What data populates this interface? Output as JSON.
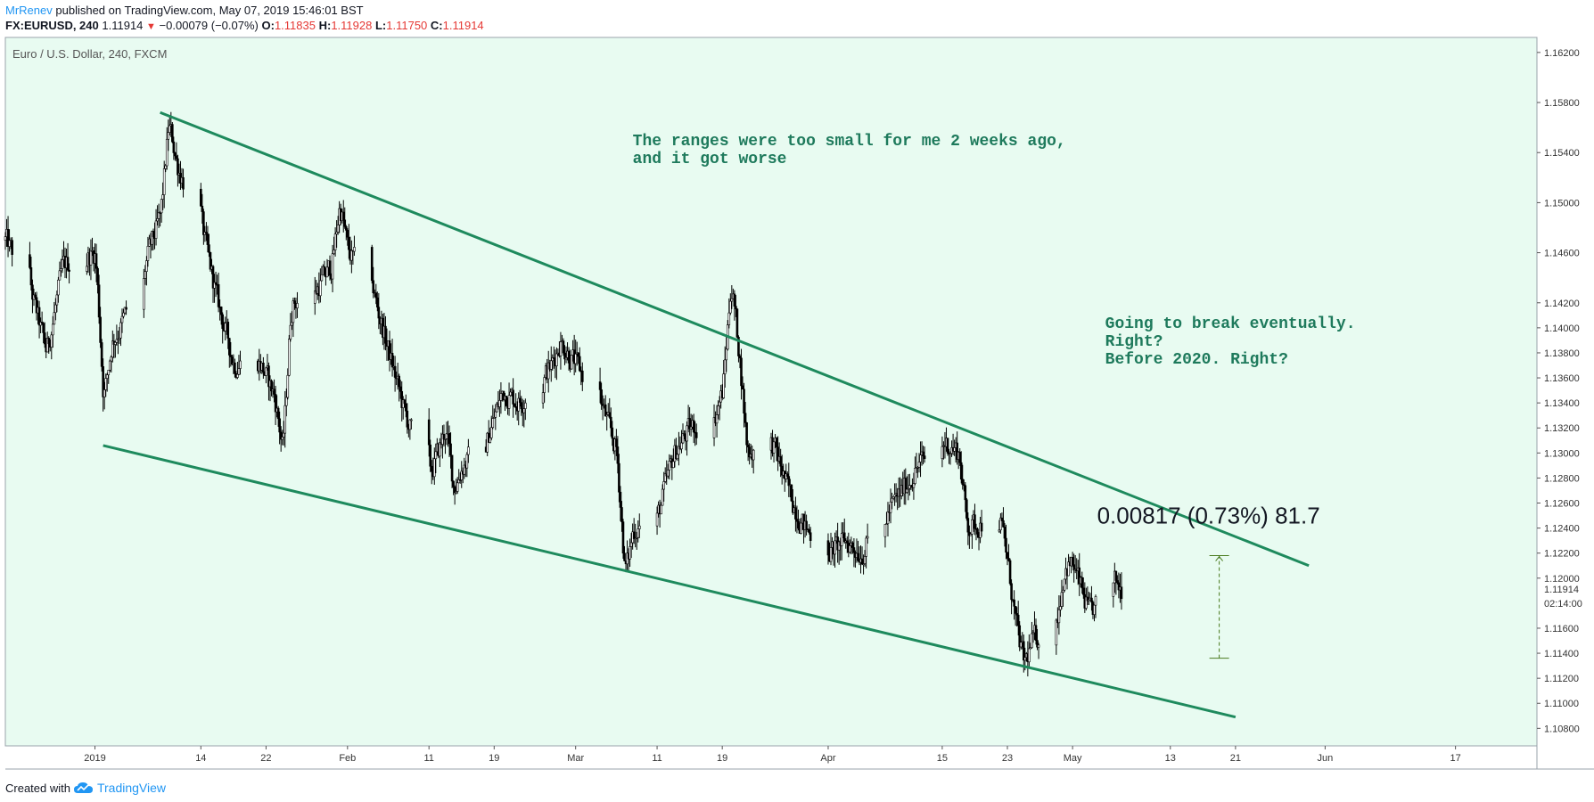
{
  "header": {
    "author": "MrRenev",
    "published_text": "published on TradingView.com, May 07, 2019 15:46:01 BST",
    "symbol": "FX:EURUSD, 240",
    "last": "1.11914",
    "change": "−0.00079 (−0.07%)",
    "open_label": "O:",
    "open": "1.11835",
    "high_label": "H:",
    "high": "1.11928",
    "low_label": "L:",
    "low": "1.11750",
    "close_label": "C:",
    "close": "1.11914",
    "down_arrow_icon": "triangle-down-icon"
  },
  "footer": {
    "created_with": "Created with",
    "brand": "TradingView",
    "logo_icon": "tradingview-cloud-icon"
  },
  "colors": {
    "background": "#e8fbf1",
    "trendline": "#1e8a5d",
    "annotation": "#1e7a5c",
    "candle": "#000000",
    "measure": "#4a7a1f",
    "down": "#e53935",
    "brand": "#2196f3"
  },
  "chart_data": {
    "type": "candlestick",
    "title": "Euro / U.S. Dollar, 240, FXCM",
    "ylim": [
      1.1066,
      1.1632
    ],
    "y_ticks": [
      "1.16200",
      "1.15800",
      "1.15400",
      "1.15000",
      "1.14600",
      "1.14200",
      "1.14000",
      "1.13800",
      "1.13600",
      "1.13400",
      "1.13200",
      "1.13000",
      "1.12800",
      "1.12600",
      "1.12400",
      "1.12200",
      "1.12000",
      "1.11600",
      "1.11400",
      "1.11200",
      "1.11000",
      "1.10800"
    ],
    "x_ticks": [
      {
        "label": "2019",
        "date": "2019-01-01"
      },
      {
        "label": "14",
        "date": "2019-01-14"
      },
      {
        "label": "22",
        "date": "2019-01-22"
      },
      {
        "label": "Feb",
        "date": "2019-02-01"
      },
      {
        "label": "11",
        "date": "2019-02-11"
      },
      {
        "label": "19",
        "date": "2019-02-19"
      },
      {
        "label": "Mar",
        "date": "2019-03-01"
      },
      {
        "label": "11",
        "date": "2019-03-11"
      },
      {
        "label": "19",
        "date": "2019-03-19"
      },
      {
        "label": "Apr",
        "date": "2019-04-01"
      },
      {
        "label": "15",
        "date": "2019-04-15"
      },
      {
        "label": "23",
        "date": "2019-04-23"
      },
      {
        "label": "May",
        "date": "2019-05-01"
      },
      {
        "label": "13",
        "date": "2019-05-13"
      },
      {
        "label": "21",
        "date": "2019-05-21"
      },
      {
        "label": "Jun",
        "date": "2019-06-01"
      },
      {
        "label": "17",
        "date": "2019-06-17"
      }
    ],
    "price_path": [
      [
        "2018-12-21",
        1.147
      ],
      [
        "2018-12-24",
        1.143
      ],
      [
        "2018-12-26",
        1.138
      ],
      [
        "2018-12-28",
        1.145
      ],
      [
        "2019-01-01",
        1.146
      ],
      [
        "2019-01-02",
        1.134
      ],
      [
        "2019-01-03",
        1.139
      ],
      [
        "2019-01-04",
        1.14
      ],
      [
        "2019-01-07",
        1.145
      ],
      [
        "2019-01-09",
        1.149
      ],
      [
        "2019-01-10",
        1.1565
      ],
      [
        "2019-01-11",
        1.153
      ],
      [
        "2019-01-14",
        1.148
      ],
      [
        "2019-01-16",
        1.142
      ],
      [
        "2019-01-18",
        1.137
      ],
      [
        "2019-01-21",
        1.1375
      ],
      [
        "2019-01-23",
        1.1345
      ],
      [
        "2019-01-24",
        1.13
      ],
      [
        "2019-01-25",
        1.142
      ],
      [
        "2019-01-28",
        1.143
      ],
      [
        "2019-01-30",
        1.145
      ],
      [
        "2019-01-31",
        1.15
      ],
      [
        "2019-02-01",
        1.146
      ],
      [
        "2019-02-04",
        1.143
      ],
      [
        "2019-02-06",
        1.138
      ],
      [
        "2019-02-08",
        1.133
      ],
      [
        "2019-02-11",
        1.128
      ],
      [
        "2019-02-13",
        1.132
      ],
      [
        "2019-02-14",
        1.127
      ],
      [
        "2019-02-15",
        1.129
      ],
      [
        "2019-02-18",
        1.131
      ],
      [
        "2019-02-20",
        1.135
      ],
      [
        "2019-02-22",
        1.134
      ],
      [
        "2019-02-26",
        1.137
      ],
      [
        "2019-02-27",
        1.139
      ],
      [
        "2019-03-01",
        1.137
      ],
      [
        "2019-03-04",
        1.134
      ],
      [
        "2019-03-06",
        1.13
      ],
      [
        "2019-03-07",
        1.12
      ],
      [
        "2019-03-08",
        1.124
      ],
      [
        "2019-03-11",
        1.125
      ],
      [
        "2019-03-13",
        1.13
      ],
      [
        "2019-03-15",
        1.132
      ],
      [
        "2019-03-18",
        1.133
      ],
      [
        "2019-03-19",
        1.135
      ],
      [
        "2019-03-20",
        1.144
      ],
      [
        "2019-03-21",
        1.138
      ],
      [
        "2019-03-22",
        1.13
      ],
      [
        "2019-03-25",
        1.131
      ],
      [
        "2019-03-27",
        1.127
      ],
      [
        "2019-03-29",
        1.124
      ],
      [
        "2019-04-01",
        1.122
      ],
      [
        "2019-04-03",
        1.123
      ],
      [
        "2019-04-05",
        1.122
      ],
      [
        "2019-04-08",
        1.125
      ],
      [
        "2019-04-10",
        1.127
      ],
      [
        "2019-04-12",
        1.129
      ],
      [
        "2019-04-15",
        1.131
      ],
      [
        "2019-04-17",
        1.13
      ],
      [
        "2019-04-18",
        1.124
      ],
      [
        "2019-04-22",
        1.125
      ],
      [
        "2019-04-23",
        1.121
      ],
      [
        "2019-04-24",
        1.116
      ],
      [
        "2019-04-25",
        1.113
      ],
      [
        "2019-04-26",
        1.115
      ],
      [
        "2019-04-29",
        1.117
      ],
      [
        "2019-04-30",
        1.121
      ],
      [
        "2019-05-01",
        1.121
      ],
      [
        "2019-05-02",
        1.119
      ],
      [
        "2019-05-03",
        1.117
      ],
      [
        "2019-05-06",
        1.12
      ],
      [
        "2019-05-07",
        1.1191
      ]
    ],
    "trendlines": [
      {
        "from": [
          "2019-01-09",
          1.1572
        ],
        "to": [
          "2019-05-30",
          1.121
        ]
      },
      {
        "from": [
          "2019-01-02",
          1.1306
        ],
        "to": [
          "2019-05-21",
          1.1089
        ]
      }
    ],
    "measure": {
      "date": "2019-05-19",
      "from": 1.1136,
      "to": 1.1218,
      "label": "0.00817 (0.73%) 81.7"
    },
    "current_price_label": "1.11914",
    "countdown_label": "02:14:00",
    "annotations": [
      {
        "date": "2019-03-08",
        "price": 1.1546,
        "lines": [
          "The ranges were too small for me 2 weeks ago,",
          "and it got worse"
        ]
      },
      {
        "date": "2019-05-05",
        "price": 1.14,
        "lines": [
          "Going to break eventually.",
          "Right?",
          "Before 2020. Right?"
        ]
      }
    ]
  }
}
